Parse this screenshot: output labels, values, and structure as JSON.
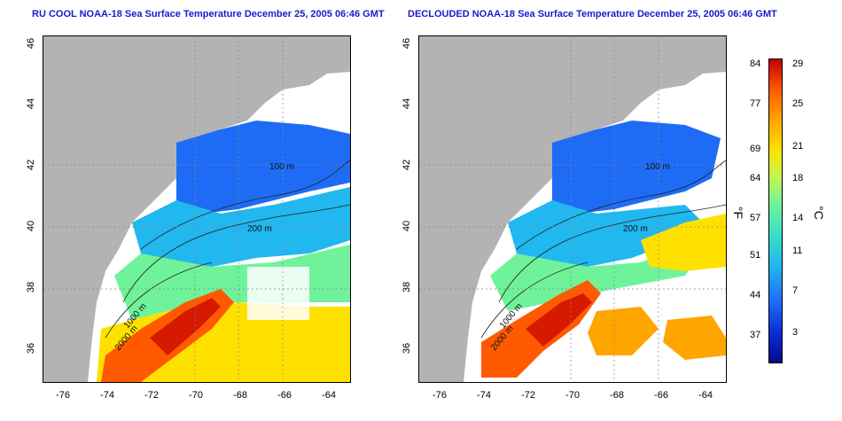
{
  "left_panel": {
    "title": "RU COOL NOAA-18 Sea Surface Temperature December 25, 2005 06:46 GMT"
  },
  "right_panel": {
    "title": "DECLOUDED NOAA-18 Sea Surface Temperature December 25, 2005 06:46 GMT"
  },
  "axes": {
    "y_ticks": [
      "46",
      "44",
      "42",
      "40",
      "38",
      "36"
    ],
    "x_ticks": [
      "-76",
      "-74",
      "-72",
      "-70",
      "-68",
      "-66",
      "-64"
    ]
  },
  "contours": [
    "100 m",
    "200 m",
    "200 m",
    "1000 m",
    "2000 m"
  ],
  "colorbar": {
    "fahrenheit_ticks": [
      "84",
      "77",
      "69",
      "64",
      "57",
      "51",
      "44",
      "37"
    ],
    "celsius_ticks": [
      "29",
      "25",
      "21",
      "18",
      "14",
      "11",
      "7",
      "3"
    ],
    "left_unit": "°F",
    "right_unit": "°C",
    "colors": [
      "#000c8c",
      "#1e6cf5",
      "#21b7ef",
      "#6ff29a",
      "#ffe100",
      "#ffa500",
      "#c40000"
    ]
  }
}
